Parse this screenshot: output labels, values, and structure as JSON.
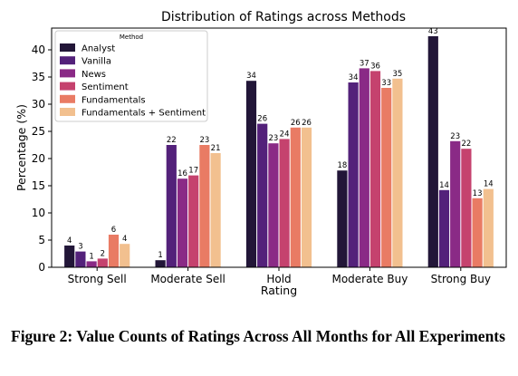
{
  "caption": "Figure 2: Value Counts of Ratings Across All Months for All Experiments",
  "chart_data": {
    "type": "bar",
    "title": "Distribution of Ratings across Methods",
    "xlabel": "Rating",
    "ylabel": "Percentage (%)",
    "ylim": [
      0,
      44
    ],
    "yticks": [
      0,
      5,
      10,
      15,
      20,
      25,
      30,
      35,
      40
    ],
    "categories": [
      "Strong Sell",
      "Moderate Sell",
      "Hold",
      "Moderate Buy",
      "Strong Buy"
    ],
    "legend_title": "Method",
    "legend_position": "top-left",
    "series": [
      {
        "name": "Analyst",
        "color": "#221638",
        "values": [
          4.0,
          1.3,
          34.3,
          17.8,
          42.5
        ],
        "labels": [
          "4",
          "1",
          "34",
          "18",
          "43"
        ]
      },
      {
        "name": "Vanilla",
        "color": "#53217a",
        "values": [
          2.9,
          22.5,
          26.4,
          34.0,
          14.2
        ],
        "labels": [
          "3",
          "22",
          "26",
          "34",
          "14"
        ]
      },
      {
        "name": "News",
        "color": "#8a2a86",
        "values": [
          1.1,
          16.3,
          22.8,
          36.6,
          23.2
        ],
        "labels": [
          "1",
          "16",
          "23",
          "37",
          "23"
        ]
      },
      {
        "name": "Sentiment",
        "color": "#c5426e",
        "values": [
          1.6,
          16.9,
          23.6,
          36.1,
          21.8
        ],
        "labels": [
          "2",
          "17",
          "24",
          "36",
          "22"
        ]
      },
      {
        "name": "Fundamentals",
        "color": "#e97b64",
        "values": [
          6.0,
          22.5,
          25.7,
          33.0,
          12.7
        ],
        "labels": [
          "6",
          "23",
          "26",
          "33",
          "13"
        ]
      },
      {
        "name": "Fundamentals + Sentiment",
        "color": "#f2c08f",
        "values": [
          4.3,
          21.0,
          25.7,
          34.7,
          14.4
        ],
        "labels": [
          "4",
          "21",
          "26",
          "35",
          "14"
        ]
      }
    ]
  }
}
